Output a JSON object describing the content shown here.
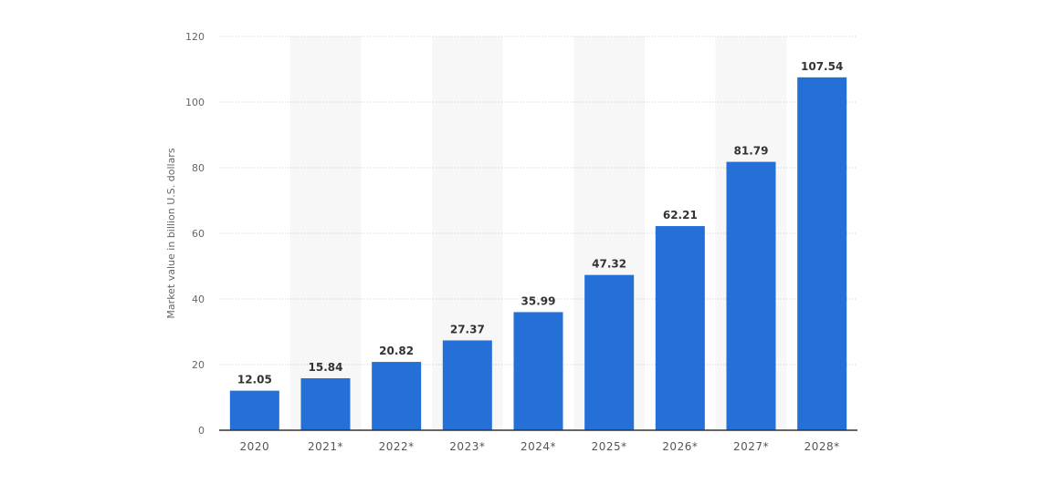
{
  "chart_data": {
    "type": "bar",
    "categories": [
      "2020",
      "2021*",
      "2022*",
      "2023*",
      "2024*",
      "2025*",
      "2026*",
      "2027*",
      "2028*"
    ],
    "values": [
      12.05,
      15.84,
      20.82,
      27.37,
      35.99,
      47.32,
      62.21,
      81.79,
      107.54
    ],
    "value_labels": [
      "12.05",
      "15.84",
      "20.82",
      "27.37",
      "35.99",
      "47.32",
      "62.21",
      "81.79",
      "107.54"
    ],
    "title": "",
    "xlabel": "",
    "ylabel": "Market value in billion U.S. dollars",
    "ylim": [
      0,
      120
    ],
    "yticks": [
      "0",
      "20",
      "40",
      "60",
      "80",
      "100",
      "120"
    ],
    "grid": true,
    "legend": "none",
    "colors": {
      "bar": "#2470d6",
      "band": "#f7f7f7",
      "grid": "#c8c8c8",
      "axis": "#333333"
    }
  }
}
